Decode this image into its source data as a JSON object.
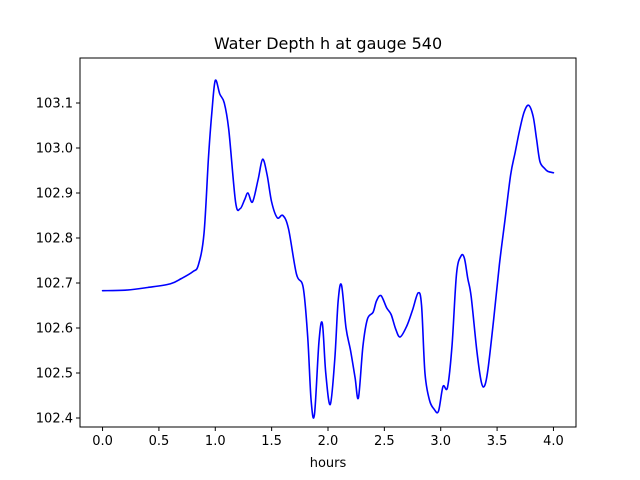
{
  "chart_data": {
    "type": "line",
    "title": "Water Depth h at gauge 540",
    "xlabel": "hours",
    "ylabel": "",
    "xlim": [
      -0.2,
      4.2
    ],
    "ylim": [
      102.38,
      103.2
    ],
    "xticks": [
      0.0,
      0.5,
      1.0,
      1.5,
      2.0,
      2.5,
      3.0,
      3.5,
      4.0
    ],
    "xtick_labels": [
      "0.0",
      "0.5",
      "1.0",
      "1.5",
      "2.0",
      "2.5",
      "3.0",
      "3.5",
      "4.0"
    ],
    "yticks": [
      102.4,
      102.5,
      102.6,
      102.7,
      102.8,
      102.9,
      103.0,
      103.1
    ],
    "ytick_labels": [
      "102.4",
      "102.5",
      "102.6",
      "102.7",
      "102.8",
      "102.9",
      "103.0",
      "103.1"
    ],
    "grid": false,
    "series": [
      {
        "color": "#0000ff",
        "x": [
          0.0,
          0.2,
          0.4,
          0.6,
          0.7,
          0.8,
          0.85,
          0.9,
          0.94,
          0.97,
          1.0,
          1.04,
          1.08,
          1.12,
          1.18,
          1.22,
          1.26,
          1.29,
          1.33,
          1.38,
          1.42,
          1.46,
          1.5,
          1.55,
          1.6,
          1.65,
          1.72,
          1.78,
          1.82,
          1.85,
          1.88,
          1.92,
          1.95,
          1.98,
          2.02,
          2.06,
          2.09,
          2.12,
          2.16,
          2.2,
          2.24,
          2.27,
          2.31,
          2.35,
          2.4,
          2.43,
          2.47,
          2.52,
          2.56,
          2.6,
          2.64,
          2.7,
          2.75,
          2.8,
          2.83,
          2.86,
          2.9,
          2.94,
          2.98,
          3.02,
          3.06,
          3.1,
          3.14,
          3.18,
          3.21,
          3.24,
          3.27,
          3.32,
          3.36,
          3.39,
          3.42,
          3.47,
          3.52,
          3.57,
          3.62,
          3.66,
          3.7,
          3.74,
          3.78,
          3.82,
          3.85,
          3.88,
          3.92,
          3.95,
          4.0
        ],
        "y": [
          102.683,
          102.684,
          102.69,
          102.698,
          102.71,
          102.725,
          102.74,
          102.81,
          102.98,
          103.08,
          103.15,
          103.12,
          103.1,
          103.04,
          102.88,
          102.865,
          102.885,
          102.9,
          102.88,
          102.93,
          102.975,
          102.94,
          102.88,
          102.845,
          102.85,
          102.82,
          102.72,
          102.69,
          102.58,
          102.44,
          102.408,
          102.57,
          102.61,
          102.5,
          102.43,
          102.53,
          102.66,
          102.695,
          102.6,
          102.55,
          102.49,
          102.445,
          102.56,
          102.62,
          102.635,
          102.66,
          102.672,
          102.645,
          102.63,
          102.598,
          102.58,
          102.605,
          102.64,
          102.678,
          102.65,
          102.5,
          102.44,
          102.42,
          102.415,
          102.47,
          102.468,
          102.56,
          102.72,
          102.76,
          102.755,
          102.71,
          102.67,
          102.55,
          102.48,
          102.472,
          102.51,
          102.62,
          102.74,
          102.84,
          102.94,
          102.99,
          103.04,
          103.08,
          103.095,
          103.07,
          103.02,
          102.97,
          102.955,
          102.948,
          102.945
        ]
      }
    ]
  }
}
